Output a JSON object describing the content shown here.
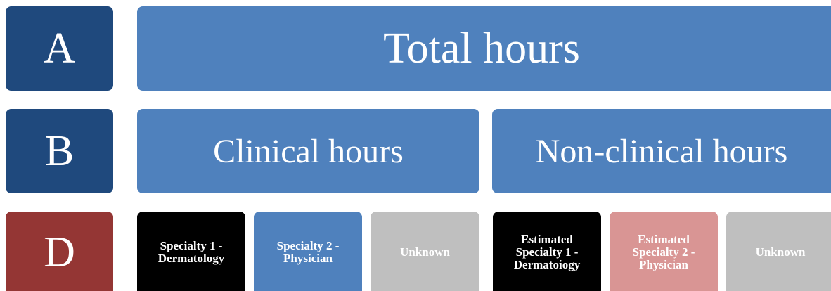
{
  "rows": [
    {
      "label": "A",
      "boxes": [
        {
          "text": "Total hours"
        }
      ]
    },
    {
      "label": "B",
      "boxes": [
        {
          "text": "Clinical hours"
        },
        {
          "text": "Non-clinical hours"
        }
      ]
    },
    {
      "label": "D",
      "boxes": [
        {
          "text": "Specialty 1 - Dermatology"
        },
        {
          "text": "Specialty 2 - Physician"
        },
        {
          "text": "Unknown"
        },
        {
          "text": "Estimated Specialty 1 - Dermatoiogy"
        },
        {
          "text": "Estimated Specialty 2 - Physician"
        },
        {
          "text": "Unknown"
        }
      ]
    }
  ]
}
